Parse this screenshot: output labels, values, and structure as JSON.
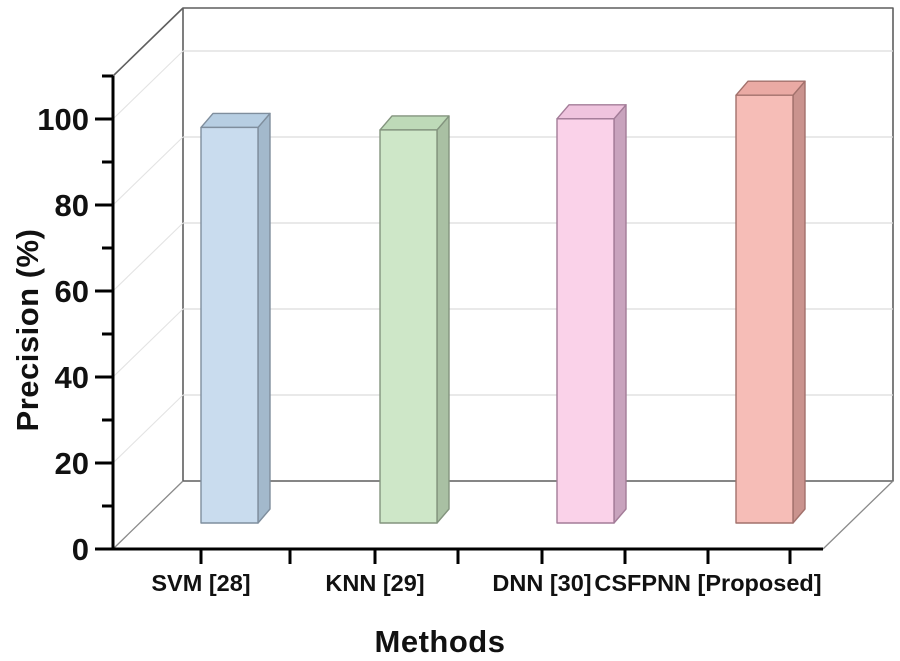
{
  "figure": {
    "kind": "3D column chart (Origin-style scientific figure)",
    "background": "#ffffff"
  },
  "chart_data": {
    "type": "bar",
    "projection": "3d-oblique",
    "title": "",
    "xlabel": "Methods",
    "ylabel": "Precision (%)",
    "categories": [
      "SVM [28]",
      "KNN [29]",
      "DNN [30]",
      "CSFPNN [Proposed]"
    ],
    "values": [
      92,
      91.4,
      94,
      99.5
    ],
    "ylim": [
      0,
      110
    ],
    "yticks": [
      0,
      20,
      40,
      60,
      80,
      100
    ],
    "minor_ytick_step": 10,
    "grid": true,
    "legend": false,
    "axis_color": "#000000",
    "grid_color": "#dcdcdc",
    "wall_edge_color": "#5f5f5f",
    "diag_color": "#8a8a8a",
    "bar_colors": [
      {
        "front": "#c9dcee",
        "top": "#b7cee2",
        "side": "#a3b9cc",
        "edge": "#7f8e9d"
      },
      {
        "front": "#cee7c8",
        "top": "#bedab8",
        "side": "#a9c0a3",
        "edge": "#83947e"
      },
      {
        "front": "#fad2e9",
        "top": "#efc4de",
        "side": "#c8a3bd",
        "edge": "#a37c98"
      },
      {
        "front": "#f6bdb7",
        "top": "#eaaaa4",
        "side": "#ca938e",
        "edge": "#a2716c"
      }
    ]
  }
}
